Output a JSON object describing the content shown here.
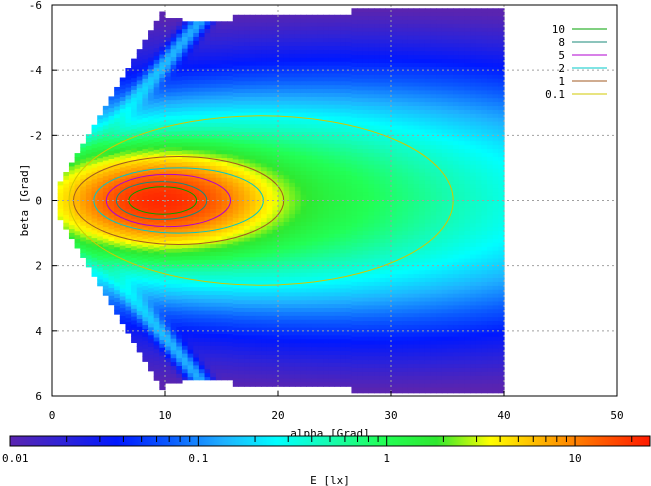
{
  "chart_data": {
    "type": "heatmap",
    "xlabel": "alpha [Grad]",
    "ylabel": "beta [Grad]",
    "xlim": [
      0,
      50
    ],
    "ylim": [
      -6,
      6
    ],
    "x_ticks": [
      "0",
      "10",
      "20",
      "30",
      "40",
      "50"
    ],
    "y_ticks": [
      "-6",
      "-4",
      "-2",
      "0",
      "2",
      "4",
      "6"
    ],
    "y_axis_reversed": true,
    "grid": true,
    "legend_position": "top-right",
    "contour_legend": [
      {
        "label": "10",
        "color": "#00a000"
      },
      {
        "label": "8",
        "color": "#1a8a7a"
      },
      {
        "label": "5",
        "color": "#b000d0"
      },
      {
        "label": "2",
        "color": "#00c8c8"
      },
      {
        "label": "1",
        "color": "#a05a20"
      },
      {
        "label": "0.1",
        "color": "#d2c800"
      }
    ],
    "colorbar": {
      "label": "E [lx]",
      "scale": "log",
      "range": [
        0.01,
        25
      ],
      "tick_labels": [
        "0.01",
        "0.1",
        "1",
        "10"
      ],
      "colors": [
        "#5a24b0",
        "#2e23d8",
        "#0018ff",
        "#0b5bff",
        "#1fb0ff",
        "#00ffff",
        "#16fcb0",
        "#22ff55",
        "#2fe830",
        "#ffff00",
        "#ffb000",
        "#ff6000",
        "#ff1a00"
      ]
    },
    "bands": [
      {
        "x_start": 0.5,
        "x_end": 10,
        "beta_edge": 5.8
      },
      {
        "x_start": 10,
        "x_end": 11.5,
        "beta_edge": 5.6
      },
      {
        "x_start": 11.5,
        "x_end": 13.5,
        "beta_edge": 5.5
      },
      {
        "x_start": 13.5,
        "x_end": 16,
        "beta_edge": 5.5
      },
      {
        "x_start": 16,
        "x_end": 20,
        "beta_edge": 5.7
      },
      {
        "x_start": 20,
        "x_end": 26.5,
        "beta_edge": 5.7
      },
      {
        "x_start": 26.5,
        "x_end": 40,
        "beta_edge": 5.9
      }
    ],
    "peak_region": {
      "alpha_center": 9.5,
      "beta_center": 0.0,
      "max_lux": 20
    }
  }
}
